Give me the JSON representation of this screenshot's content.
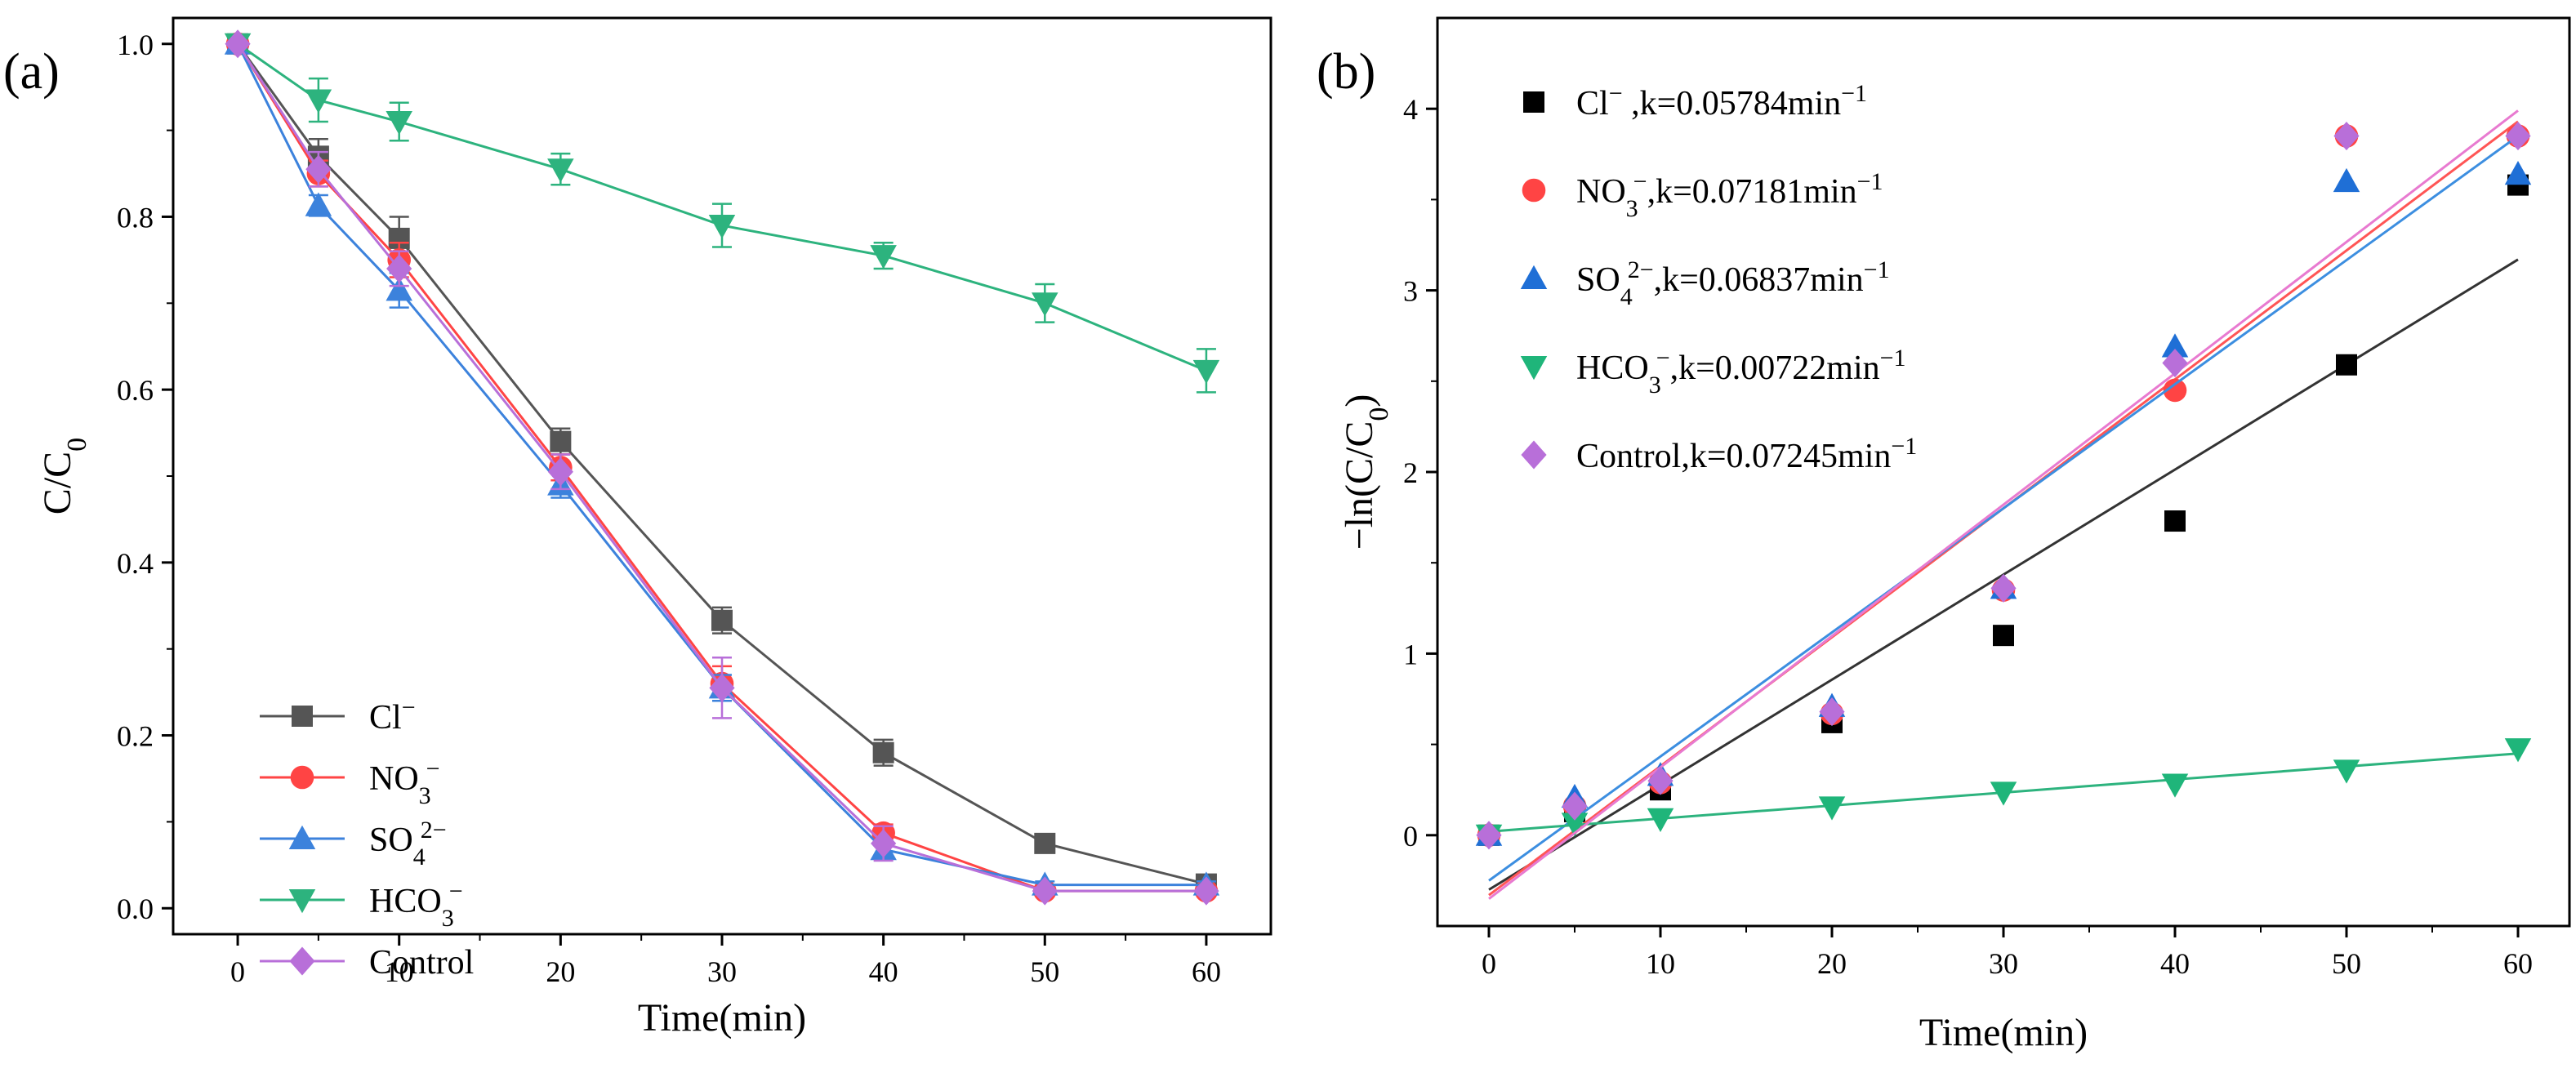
{
  "chart_data": [
    {
      "panel_label": "(a)",
      "type": "line",
      "xlabel": "Time(min)",
      "ylabel": "C/C0",
      "xlim": [
        -4,
        64
      ],
      "ylim": [
        -0.03,
        1.03
      ],
      "x_ticks": [
        "0",
        "10",
        "20",
        "30",
        "40",
        "50",
        "60"
      ],
      "y_ticks": [
        "0.0",
        "0.2",
        "0.4",
        "0.6",
        "0.8",
        "1.0"
      ],
      "legend_position": "bottom-left",
      "series": [
        {
          "name": "Cl",
          "sup": "−",
          "sub": "",
          "color": "#555555",
          "marker": "square",
          "x": [
            0,
            5,
            10,
            20,
            30,
            40,
            50,
            60
          ],
          "y": [
            1.0,
            0.87,
            0.775,
            0.54,
            0.333,
            0.18,
            0.075,
            0.028
          ],
          "err": [
            0,
            0.02,
            0.025,
            0.015,
            0.015,
            0.015,
            0.007,
            0.005
          ]
        },
        {
          "name": "NO",
          "sup": "−",
          "sub": "3",
          "color": "#ff4444",
          "marker": "circle",
          "x": [
            0,
            5,
            10,
            20,
            30,
            40,
            50,
            60
          ],
          "y": [
            1.0,
            0.85,
            0.75,
            0.51,
            0.26,
            0.087,
            0.02,
            0.02
          ],
          "err": [
            0,
            0.015,
            0.02,
            0.015,
            0.02,
            0.01,
            0.004,
            0.004
          ]
        },
        {
          "name": "SO",
          "sup": "2−",
          "sub": "4",
          "color": "#3c82dc",
          "marker": "triangle-up",
          "x": [
            0,
            5,
            10,
            20,
            30,
            40,
            50,
            60
          ],
          "y": [
            1.0,
            0.813,
            0.715,
            0.49,
            0.255,
            0.068,
            0.027,
            0.027
          ],
          "err": [
            0,
            0.012,
            0.02,
            0.015,
            0.015,
            0.01,
            0.004,
            0.004
          ]
        },
        {
          "name": "HCO",
          "sup": "−",
          "sub": "3",
          "color": "#2db37e",
          "marker": "triangle-down",
          "x": [
            0,
            5,
            10,
            20,
            30,
            40,
            50,
            60
          ],
          "y": [
            1.0,
            0.935,
            0.91,
            0.855,
            0.79,
            0.755,
            0.7,
            0.622
          ],
          "err": [
            0,
            0.025,
            0.022,
            0.018,
            0.025,
            0.015,
            0.022,
            0.025
          ]
        },
        {
          "name": "Control",
          "sup": "",
          "sub": "",
          "color": "#b86fd9",
          "marker": "diamond",
          "x": [
            0,
            5,
            10,
            20,
            30,
            40,
            50,
            60
          ],
          "y": [
            1.0,
            0.855,
            0.74,
            0.505,
            0.255,
            0.075,
            0.02,
            0.02
          ],
          "err": [
            0,
            0.02,
            0.02,
            0.02,
            0.035,
            0.02,
            0.004,
            0.004
          ]
        }
      ]
    },
    {
      "panel_label": "(b)",
      "type": "scatter",
      "xlabel": "Time(min)",
      "ylabel": "−ln(C/C0)",
      "xlim": [
        -3,
        63
      ],
      "ylim": [
        -0.5,
        4.5
      ],
      "x_ticks": [
        "0",
        "10",
        "20",
        "30",
        "40",
        "50",
        "60"
      ],
      "y_ticks": [
        "0",
        "1",
        "2",
        "3",
        "4"
      ],
      "legend_position": "top-left",
      "series": [
        {
          "name": "Cl",
          "sup": "−",
          "sub": "",
          "k_label": "    ,k=0.05784min",
          "color": "#000000",
          "fit_color": "#333333",
          "marker": "square",
          "x": [
            0,
            5,
            10,
            20,
            30,
            40,
            50,
            60
          ],
          "y": [
            0.0,
            0.13,
            0.25,
            0.62,
            1.1,
            1.73,
            2.59,
            3.58
          ],
          "fit": [
            -0.3,
            3.17
          ]
        },
        {
          "name": "NO",
          "sup": "−",
          "sub": "3",
          "k_label": ",k=0.07181min",
          "color": "#ff4444",
          "fit_color": "#ff5555",
          "marker": "circle",
          "x": [
            0,
            5,
            10,
            20,
            30,
            40,
            50,
            60
          ],
          "y": [
            0.0,
            0.16,
            0.29,
            0.67,
            1.35,
            2.45,
            3.85,
            3.85
          ],
          "fit": [
            -0.33,
            3.93
          ]
        },
        {
          "name": "SO",
          "sup": "2−",
          "sub": "4",
          "k_label": ",k=0.06837min",
          "color": "#1f6fd6",
          "fit_color": "#3c8ee0",
          "marker": "triangle-up",
          "x": [
            0,
            5,
            10,
            20,
            30,
            40,
            50,
            60
          ],
          "y": [
            0.0,
            0.21,
            0.33,
            0.71,
            1.36,
            2.69,
            3.6,
            3.64
          ],
          "fit": [
            -0.25,
            3.85
          ]
        },
        {
          "name": "HCO",
          "sup": "−",
          "sub": "3",
          "k_label": ",k=0.00722min",
          "color": "#1fb57a",
          "fit_color": "#2db37e",
          "marker": "triangle-down",
          "x": [
            0,
            5,
            10,
            20,
            30,
            40,
            50,
            60
          ],
          "y": [
            0.0,
            0.065,
            0.09,
            0.155,
            0.236,
            0.28,
            0.357,
            0.475
          ],
          "fit": [
            0.02,
            0.45
          ]
        },
        {
          "name": "Control",
          "sup": "",
          "sub": "",
          "k_label": ",k=0.07245min",
          "color": "#b86fd9",
          "fit_color": "#e87ad0",
          "marker": "diamond",
          "x": [
            0,
            5,
            10,
            20,
            30,
            40,
            50,
            60
          ],
          "y": [
            0.0,
            0.16,
            0.3,
            0.68,
            1.36,
            2.6,
            3.85,
            3.85
          ],
          "fit": [
            -0.35,
            3.99
          ]
        }
      ]
    }
  ]
}
